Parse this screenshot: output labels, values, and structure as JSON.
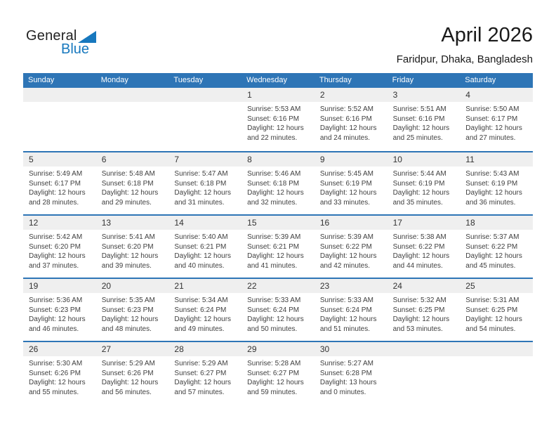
{
  "logo": {
    "general": "General",
    "blue": "Blue"
  },
  "header": {
    "title": "April 2026",
    "subtitle": "Faridpur, Dhaka, Bangladesh"
  },
  "colors": {
    "header_blue": "#2E75B6",
    "logo_blue": "#1778BE",
    "band_gray": "#EFEFEF"
  },
  "calendar": {
    "day_headers": [
      "Sunday",
      "Monday",
      "Tuesday",
      "Wednesday",
      "Thursday",
      "Friday",
      "Saturday"
    ],
    "weeks": [
      {
        "cells": [
          null,
          null,
          null,
          {
            "day": "1",
            "sunrise": "Sunrise: 5:53 AM",
            "sunset": "Sunset: 6:16 PM",
            "daylight1": "Daylight: 12 hours",
            "daylight2": "and 22 minutes."
          },
          {
            "day": "2",
            "sunrise": "Sunrise: 5:52 AM",
            "sunset": "Sunset: 6:16 PM",
            "daylight1": "Daylight: 12 hours",
            "daylight2": "and 24 minutes."
          },
          {
            "day": "3",
            "sunrise": "Sunrise: 5:51 AM",
            "sunset": "Sunset: 6:16 PM",
            "daylight1": "Daylight: 12 hours",
            "daylight2": "and 25 minutes."
          },
          {
            "day": "4",
            "sunrise": "Sunrise: 5:50 AM",
            "sunset": "Sunset: 6:17 PM",
            "daylight1": "Daylight: 12 hours",
            "daylight2": "and 27 minutes."
          }
        ]
      },
      {
        "cells": [
          {
            "day": "5",
            "sunrise": "Sunrise: 5:49 AM",
            "sunset": "Sunset: 6:17 PM",
            "daylight1": "Daylight: 12 hours",
            "daylight2": "and 28 minutes."
          },
          {
            "day": "6",
            "sunrise": "Sunrise: 5:48 AM",
            "sunset": "Sunset: 6:18 PM",
            "daylight1": "Daylight: 12 hours",
            "daylight2": "and 29 minutes."
          },
          {
            "day": "7",
            "sunrise": "Sunrise: 5:47 AM",
            "sunset": "Sunset: 6:18 PM",
            "daylight1": "Daylight: 12 hours",
            "daylight2": "and 31 minutes."
          },
          {
            "day": "8",
            "sunrise": "Sunrise: 5:46 AM",
            "sunset": "Sunset: 6:18 PM",
            "daylight1": "Daylight: 12 hours",
            "daylight2": "and 32 minutes."
          },
          {
            "day": "9",
            "sunrise": "Sunrise: 5:45 AM",
            "sunset": "Sunset: 6:19 PM",
            "daylight1": "Daylight: 12 hours",
            "daylight2": "and 33 minutes."
          },
          {
            "day": "10",
            "sunrise": "Sunrise: 5:44 AM",
            "sunset": "Sunset: 6:19 PM",
            "daylight1": "Daylight: 12 hours",
            "daylight2": "and 35 minutes."
          },
          {
            "day": "11",
            "sunrise": "Sunrise: 5:43 AM",
            "sunset": "Sunset: 6:19 PM",
            "daylight1": "Daylight: 12 hours",
            "daylight2": "and 36 minutes."
          }
        ]
      },
      {
        "cells": [
          {
            "day": "12",
            "sunrise": "Sunrise: 5:42 AM",
            "sunset": "Sunset: 6:20 PM",
            "daylight1": "Daylight: 12 hours",
            "daylight2": "and 37 minutes."
          },
          {
            "day": "13",
            "sunrise": "Sunrise: 5:41 AM",
            "sunset": "Sunset: 6:20 PM",
            "daylight1": "Daylight: 12 hours",
            "daylight2": "and 39 minutes."
          },
          {
            "day": "14",
            "sunrise": "Sunrise: 5:40 AM",
            "sunset": "Sunset: 6:21 PM",
            "daylight1": "Daylight: 12 hours",
            "daylight2": "and 40 minutes."
          },
          {
            "day": "15",
            "sunrise": "Sunrise: 5:39 AM",
            "sunset": "Sunset: 6:21 PM",
            "daylight1": "Daylight: 12 hours",
            "daylight2": "and 41 minutes."
          },
          {
            "day": "16",
            "sunrise": "Sunrise: 5:39 AM",
            "sunset": "Sunset: 6:22 PM",
            "daylight1": "Daylight: 12 hours",
            "daylight2": "and 42 minutes."
          },
          {
            "day": "17",
            "sunrise": "Sunrise: 5:38 AM",
            "sunset": "Sunset: 6:22 PM",
            "daylight1": "Daylight: 12 hours",
            "daylight2": "and 44 minutes."
          },
          {
            "day": "18",
            "sunrise": "Sunrise: 5:37 AM",
            "sunset": "Sunset: 6:22 PM",
            "daylight1": "Daylight: 12 hours",
            "daylight2": "and 45 minutes."
          }
        ]
      },
      {
        "cells": [
          {
            "day": "19",
            "sunrise": "Sunrise: 5:36 AM",
            "sunset": "Sunset: 6:23 PM",
            "daylight1": "Daylight: 12 hours",
            "daylight2": "and 46 minutes."
          },
          {
            "day": "20",
            "sunrise": "Sunrise: 5:35 AM",
            "sunset": "Sunset: 6:23 PM",
            "daylight1": "Daylight: 12 hours",
            "daylight2": "and 48 minutes."
          },
          {
            "day": "21",
            "sunrise": "Sunrise: 5:34 AM",
            "sunset": "Sunset: 6:24 PM",
            "daylight1": "Daylight: 12 hours",
            "daylight2": "and 49 minutes."
          },
          {
            "day": "22",
            "sunrise": "Sunrise: 5:33 AM",
            "sunset": "Sunset: 6:24 PM",
            "daylight1": "Daylight: 12 hours",
            "daylight2": "and 50 minutes."
          },
          {
            "day": "23",
            "sunrise": "Sunrise: 5:33 AM",
            "sunset": "Sunset: 6:24 PM",
            "daylight1": "Daylight: 12 hours",
            "daylight2": "and 51 minutes."
          },
          {
            "day": "24",
            "sunrise": "Sunrise: 5:32 AM",
            "sunset": "Sunset: 6:25 PM",
            "daylight1": "Daylight: 12 hours",
            "daylight2": "and 53 minutes."
          },
          {
            "day": "25",
            "sunrise": "Sunrise: 5:31 AM",
            "sunset": "Sunset: 6:25 PM",
            "daylight1": "Daylight: 12 hours",
            "daylight2": "and 54 minutes."
          }
        ]
      },
      {
        "cells": [
          {
            "day": "26",
            "sunrise": "Sunrise: 5:30 AM",
            "sunset": "Sunset: 6:26 PM",
            "daylight1": "Daylight: 12 hours",
            "daylight2": "and 55 minutes."
          },
          {
            "day": "27",
            "sunrise": "Sunrise: 5:29 AM",
            "sunset": "Sunset: 6:26 PM",
            "daylight1": "Daylight: 12 hours",
            "daylight2": "and 56 minutes."
          },
          {
            "day": "28",
            "sunrise": "Sunrise: 5:29 AM",
            "sunset": "Sunset: 6:27 PM",
            "daylight1": "Daylight: 12 hours",
            "daylight2": "and 57 minutes."
          },
          {
            "day": "29",
            "sunrise": "Sunrise: 5:28 AM",
            "sunset": "Sunset: 6:27 PM",
            "daylight1": "Daylight: 12 hours",
            "daylight2": "and 59 minutes."
          },
          {
            "day": "30",
            "sunrise": "Sunrise: 5:27 AM",
            "sunset": "Sunset: 6:28 PM",
            "daylight1": "Daylight: 13 hours",
            "daylight2": "and 0 minutes."
          },
          null,
          null
        ]
      }
    ]
  }
}
